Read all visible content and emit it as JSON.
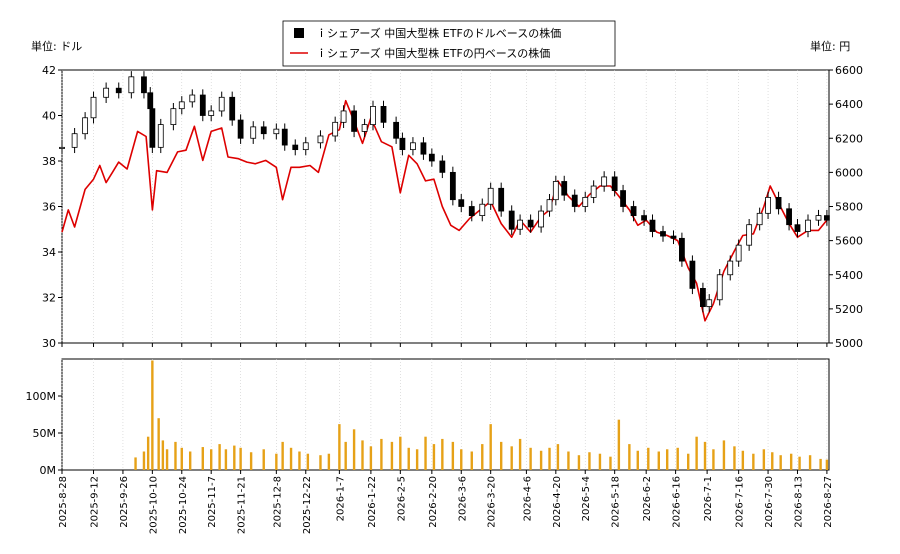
{
  "chart_data": {
    "type": "candlestick+line+volume",
    "legend": {
      "placement": "top-center",
      "entries": [
        {
          "name": "ｉシェアーズ 中国大型株 ETFのドルベースの株価",
          "color": "#000000",
          "marker": "square"
        },
        {
          "name": "ｉシェアーズ 中国大型株 ETFの円ベースの株価",
          "color": "#dd0000",
          "marker": "line"
        }
      ]
    },
    "left_axis": {
      "unit_label": "単位: ドル",
      "ylim": [
        30,
        42
      ],
      "ticks": [
        30,
        32,
        34,
        36,
        38,
        40,
        42
      ]
    },
    "right_axis": {
      "unit_label": "単位: 円",
      "ylim": [
        5000,
        6600
      ],
      "ticks": [
        5000,
        5200,
        5400,
        5600,
        5800,
        6000,
        6200,
        6400,
        6600
      ]
    },
    "volume_axis": {
      "ylim": [
        0,
        150000000
      ],
      "ticks": [
        {
          "value": 0,
          "label": "0M"
        },
        {
          "value": 50000000,
          "label": "50M"
        },
        {
          "value": 100000000,
          "label": "100M"
        }
      ]
    },
    "x_axis": {
      "start": "2025-08-28",
      "end": "2026-08-28",
      "tick_labels": [
        "2025-8-28",
        "2025-9-12",
        "2025-9-26",
        "2025-10-10",
        "2025-10-24",
        "2025-11-7",
        "2025-11-21",
        "2025-12-8",
        "2025-12-22",
        "2026-1-7",
        "2026-1-22",
        "2026-2-5",
        "2026-2-20",
        "2026-3-6",
        "2026-3-20",
        "2026-4-6",
        "2026-4-20",
        "2026-5-4",
        "2026-5-18",
        "2026-6-2",
        "2026-6-16",
        "2026-7-1",
        "2026-7-16",
        "2026-7-30",
        "2026-8-13",
        "2026-8-27"
      ],
      "tick_dates": [
        "2025-08-28",
        "2025-09-12",
        "2025-09-26",
        "2025-10-10",
        "2025-10-24",
        "2025-11-07",
        "2025-11-21",
        "2025-12-08",
        "2025-12-22",
        "2026-01-07",
        "2026-01-22",
        "2026-02-05",
        "2026-02-20",
        "2026-03-06",
        "2026-03-20",
        "2026-04-06",
        "2026-04-20",
        "2026-05-04",
        "2026-05-18",
        "2026-06-02",
        "2026-06-16",
        "2026-07-01",
        "2026-07-16",
        "2026-07-30",
        "2026-08-13",
        "2026-08-27"
      ]
    },
    "dollar_price": [
      [
        "2025-08-28",
        38.6
      ],
      [
        "2025-09-03",
        39.2
      ],
      [
        "2025-09-08",
        39.9
      ],
      [
        "2025-09-12",
        40.8
      ],
      [
        "2025-09-18",
        41.2
      ],
      [
        "2025-09-24",
        41.0
      ],
      [
        "2025-09-30",
        41.7
      ],
      [
        "2025-10-06",
        41.0
      ],
      [
        "2025-10-09",
        40.3
      ],
      [
        "2025-10-10",
        38.6
      ],
      [
        "2025-10-14",
        39.6
      ],
      [
        "2025-10-20",
        40.3
      ],
      [
        "2025-10-24",
        40.6
      ],
      [
        "2025-10-29",
        40.9
      ],
      [
        "2025-11-03",
        40.0
      ],
      [
        "2025-11-07",
        40.2
      ],
      [
        "2025-11-12",
        40.8
      ],
      [
        "2025-11-17",
        39.8
      ],
      [
        "2025-11-21",
        39.0
      ],
      [
        "2025-11-27",
        39.5
      ],
      [
        "2025-12-02",
        39.2
      ],
      [
        "2025-12-08",
        39.4
      ],
      [
        "2025-12-12",
        38.7
      ],
      [
        "2025-12-17",
        38.5
      ],
      [
        "2025-12-22",
        38.8
      ],
      [
        "2025-12-29",
        39.1
      ],
      [
        "2026-01-05",
        39.7
      ],
      [
        "2026-01-09",
        40.2
      ],
      [
        "2026-01-14",
        39.3
      ],
      [
        "2026-01-19",
        39.6
      ],
      [
        "2026-01-23",
        40.4
      ],
      [
        "2026-01-28",
        39.7
      ],
      [
        "2026-02-03",
        39.0
      ],
      [
        "2026-02-06",
        38.5
      ],
      [
        "2026-02-11",
        38.8
      ],
      [
        "2026-02-16",
        38.3
      ],
      [
        "2026-02-20",
        38.0
      ],
      [
        "2026-02-25",
        37.5
      ],
      [
        "2026-03-02",
        36.3
      ],
      [
        "2026-03-06",
        36.0
      ],
      [
        "2026-03-11",
        35.6
      ],
      [
        "2026-03-16",
        36.1
      ],
      [
        "2026-03-20",
        36.8
      ],
      [
        "2026-03-25",
        35.8
      ],
      [
        "2026-03-30",
        35.0
      ],
      [
        "2026-04-03",
        35.4
      ],
      [
        "2026-04-08",
        35.1
      ],
      [
        "2026-04-13",
        35.8
      ],
      [
        "2026-04-17",
        36.3
      ],
      [
        "2026-04-20",
        37.1
      ],
      [
        "2026-04-24",
        36.5
      ],
      [
        "2026-04-29",
        36.0
      ],
      [
        "2026-05-04",
        36.4
      ],
      [
        "2026-05-08",
        36.9
      ],
      [
        "2026-05-13",
        37.3
      ],
      [
        "2026-05-18",
        36.7
      ],
      [
        "2026-05-22",
        36.0
      ],
      [
        "2026-05-27",
        35.6
      ],
      [
        "2026-06-01",
        35.4
      ],
      [
        "2026-06-05",
        34.9
      ],
      [
        "2026-06-10",
        34.7
      ],
      [
        "2026-06-15",
        34.6
      ],
      [
        "2026-06-19",
        33.6
      ],
      [
        "2026-06-24",
        32.4
      ],
      [
        "2026-06-29",
        31.6
      ],
      [
        "2026-07-02",
        31.9
      ],
      [
        "2026-07-07",
        33.0
      ],
      [
        "2026-07-12",
        33.6
      ],
      [
        "2026-07-16",
        34.3
      ],
      [
        "2026-07-21",
        35.2
      ],
      [
        "2026-07-26",
        35.7
      ],
      [
        "2026-07-30",
        36.4
      ],
      [
        "2026-08-04",
        35.9
      ],
      [
        "2026-08-09",
        35.2
      ],
      [
        "2026-08-13",
        34.9
      ],
      [
        "2026-08-18",
        35.4
      ],
      [
        "2026-08-23",
        35.6
      ],
      [
        "2026-08-27",
        35.4
      ]
    ],
    "yen_price": [
      [
        "2025-08-28",
        5650
      ],
      [
        "2025-08-31",
        5780
      ],
      [
        "2025-09-03",
        5680
      ],
      [
        "2025-09-08",
        5900
      ],
      [
        "2025-09-12",
        5960
      ],
      [
        "2025-09-15",
        6040
      ],
      [
        "2025-09-18",
        5940
      ],
      [
        "2025-09-21",
        6000
      ],
      [
        "2025-09-24",
        6060
      ],
      [
        "2025-09-28",
        6020
      ],
      [
        "2025-10-03",
        6240
      ],
      [
        "2025-10-07",
        6210
      ],
      [
        "2025-10-10",
        5780
      ],
      [
        "2025-10-12",
        6010
      ],
      [
        "2025-10-17",
        6000
      ],
      [
        "2025-10-22",
        6120
      ],
      [
        "2025-10-26",
        6130
      ],
      [
        "2025-10-30",
        6270
      ],
      [
        "2025-11-03",
        6070
      ],
      [
        "2025-11-07",
        6240
      ],
      [
        "2025-11-12",
        6260
      ],
      [
        "2025-11-15",
        6090
      ],
      [
        "2025-11-20",
        6080
      ],
      [
        "2025-11-24",
        6060
      ],
      [
        "2025-11-28",
        6050
      ],
      [
        "2025-12-03",
        6070
      ],
      [
        "2025-12-08",
        6030
      ],
      [
        "2025-12-11",
        5840
      ],
      [
        "2025-12-15",
        6030
      ],
      [
        "2025-12-19",
        6030
      ],
      [
        "2025-12-24",
        6040
      ],
      [
        "2025-12-28",
        6000
      ],
      [
        "2026-01-02",
        6220
      ],
      [
        "2026-01-07",
        6250
      ],
      [
        "2026-01-10",
        6420
      ],
      [
        "2026-01-14",
        6300
      ],
      [
        "2026-01-18",
        6170
      ],
      [
        "2026-01-22",
        6320
      ],
      [
        "2026-01-27",
        6180
      ],
      [
        "2026-02-01",
        6150
      ],
      [
        "2026-02-05",
        5880
      ],
      [
        "2026-02-09",
        6100
      ],
      [
        "2026-02-13",
        6050
      ],
      [
        "2026-02-17",
        5950
      ],
      [
        "2026-02-21",
        5960
      ],
      [
        "2026-02-25",
        5800
      ],
      [
        "2026-03-01",
        5690
      ],
      [
        "2026-03-05",
        5660
      ],
      [
        "2026-03-10",
        5730
      ],
      [
        "2026-03-15",
        5780
      ],
      [
        "2026-03-20",
        5830
      ],
      [
        "2026-03-25",
        5700
      ],
      [
        "2026-03-30",
        5620
      ],
      [
        "2026-04-03",
        5720
      ],
      [
        "2026-04-08",
        5650
      ],
      [
        "2026-04-13",
        5740
      ],
      [
        "2026-04-17",
        5780
      ],
      [
        "2026-04-21",
        5950
      ],
      [
        "2026-04-26",
        5860
      ],
      [
        "2026-05-01",
        5800
      ],
      [
        "2026-05-06",
        5870
      ],
      [
        "2026-05-11",
        5920
      ],
      [
        "2026-05-16",
        5920
      ],
      [
        "2026-05-20",
        5860
      ],
      [
        "2026-05-25",
        5780
      ],
      [
        "2026-05-29",
        5690
      ],
      [
        "2026-06-02",
        5720
      ],
      [
        "2026-06-07",
        5650
      ],
      [
        "2026-06-12",
        5630
      ],
      [
        "2026-06-17",
        5600
      ],
      [
        "2026-06-22",
        5440
      ],
      [
        "2026-06-26",
        5350
      ],
      [
        "2026-06-30",
        5130
      ],
      [
        "2026-07-04",
        5230
      ],
      [
        "2026-07-09",
        5420
      ],
      [
        "2026-07-14",
        5540
      ],
      [
        "2026-07-18",
        5630
      ],
      [
        "2026-07-23",
        5640
      ],
      [
        "2026-07-28",
        5800
      ],
      [
        "2026-07-31",
        5920
      ],
      [
        "2026-08-04",
        5820
      ],
      [
        "2026-08-09",
        5700
      ],
      [
        "2026-08-13",
        5620
      ],
      [
        "2026-08-18",
        5660
      ],
      [
        "2026-08-23",
        5660
      ],
      [
        "2026-08-27",
        5720
      ]
    ],
    "volume": [
      [
        "2025-10-02",
        17000000
      ],
      [
        "2025-10-06",
        25000000
      ],
      [
        "2025-10-08",
        45000000
      ],
      [
        "2025-10-10",
        148000000
      ],
      [
        "2025-10-13",
        70000000
      ],
      [
        "2025-10-15",
        40000000
      ],
      [
        "2025-10-17",
        28000000
      ],
      [
        "2025-10-21",
        38000000
      ],
      [
        "2025-10-24",
        30000000
      ],
      [
        "2025-10-28",
        25000000
      ],
      [
        "2025-11-03",
        31000000
      ],
      [
        "2025-11-07",
        28000000
      ],
      [
        "2025-11-11",
        35000000
      ],
      [
        "2025-11-14",
        28000000
      ],
      [
        "2025-11-18",
        33000000
      ],
      [
        "2025-11-21",
        30000000
      ],
      [
        "2025-11-26",
        24000000
      ],
      [
        "2025-12-02",
        28000000
      ],
      [
        "2025-12-08",
        22000000
      ],
      [
        "2025-12-11",
        38000000
      ],
      [
        "2025-12-15",
        30000000
      ],
      [
        "2025-12-19",
        25000000
      ],
      [
        "2025-12-23",
        22000000
      ],
      [
        "2025-12-29",
        20000000
      ],
      [
        "2026-01-02",
        22000000
      ],
      [
        "2026-01-07",
        62000000
      ],
      [
        "2026-01-10",
        38000000
      ],
      [
        "2026-01-14",
        55000000
      ],
      [
        "2026-01-18",
        40000000
      ],
      [
        "2026-01-22",
        32000000
      ],
      [
        "2026-01-27",
        42000000
      ],
      [
        "2026-02-01",
        38000000
      ],
      [
        "2026-02-05",
        45000000
      ],
      [
        "2026-02-09",
        30000000
      ],
      [
        "2026-02-13",
        28000000
      ],
      [
        "2026-02-17",
        45000000
      ],
      [
        "2026-02-21",
        35000000
      ],
      [
        "2026-02-25",
        42000000
      ],
      [
        "2026-03-02",
        38000000
      ],
      [
        "2026-03-06",
        28000000
      ],
      [
        "2026-03-11",
        25000000
      ],
      [
        "2026-03-16",
        35000000
      ],
      [
        "2026-03-20",
        62000000
      ],
      [
        "2026-03-25",
        38000000
      ],
      [
        "2026-03-30",
        32000000
      ],
      [
        "2026-04-03",
        42000000
      ],
      [
        "2026-04-08",
        30000000
      ],
      [
        "2026-04-13",
        26000000
      ],
      [
        "2026-04-17",
        30000000
      ],
      [
        "2026-04-21",
        35000000
      ],
      [
        "2026-04-26",
        25000000
      ],
      [
        "2026-05-01",
        20000000
      ],
      [
        "2026-05-06",
        24000000
      ],
      [
        "2026-05-11",
        22000000
      ],
      [
        "2026-05-16",
        18000000
      ],
      [
        "2026-05-20",
        68000000
      ],
      [
        "2026-05-25",
        35000000
      ],
      [
        "2026-05-29",
        26000000
      ],
      [
        "2026-06-03",
        30000000
      ],
      [
        "2026-06-08",
        25000000
      ],
      [
        "2026-06-12",
        28000000
      ],
      [
        "2026-06-17",
        30000000
      ],
      [
        "2026-06-22",
        22000000
      ],
      [
        "2026-06-26",
        45000000
      ],
      [
        "2026-06-30",
        38000000
      ],
      [
        "2026-07-04",
        28000000
      ],
      [
        "2026-07-09",
        40000000
      ],
      [
        "2026-07-14",
        32000000
      ],
      [
        "2026-07-18",
        26000000
      ],
      [
        "2026-07-23",
        22000000
      ],
      [
        "2026-07-28",
        28000000
      ],
      [
        "2026-08-01",
        24000000
      ],
      [
        "2026-08-05",
        20000000
      ],
      [
        "2026-08-10",
        22000000
      ],
      [
        "2026-08-14",
        18000000
      ],
      [
        "2026-08-19",
        20000000
      ],
      [
        "2026-08-24",
        15000000
      ],
      [
        "2026-08-27",
        14000000
      ]
    ]
  },
  "colors": {
    "dollar_candle": "#000000",
    "yen_line": "#dd0000",
    "volume_bar": "#e6a117",
    "axis": "#000000",
    "grid": "#cccccc"
  }
}
